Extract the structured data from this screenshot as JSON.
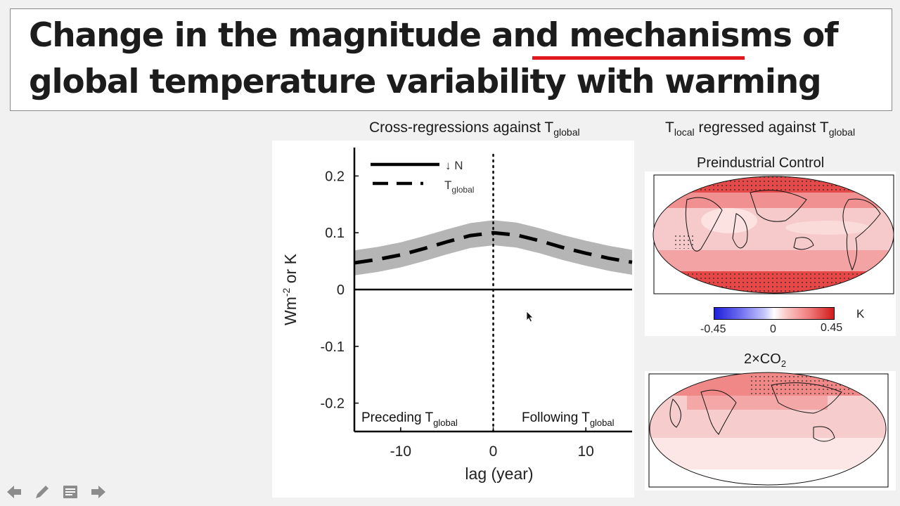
{
  "slide": {
    "title_line1_a": "Change in the magnitude and ",
    "title_line1_highlight": "mechanisms",
    "title_line1_b": " of",
    "title_line2": "global temperature variability with warming",
    "colors": {
      "highlight": "#e0191e",
      "text": "#1c1c1c"
    }
  },
  "left_heading": {
    "main": "Cross-regressions against T",
    "sub": "global"
  },
  "right_heading": {
    "a": "T",
    "a_sub": "local",
    "b": " regressed against T",
    "b_sub": "global"
  },
  "chart_data": {
    "type": "line",
    "x": [
      -15,
      -12.5,
      -10,
      -7.5,
      -5,
      -2.5,
      0,
      2.5,
      5,
      7.5,
      10,
      12.5,
      15
    ],
    "series": [
      {
        "name": "↓ N",
        "style": "solid",
        "values": [
          0,
          0,
          0,
          0,
          0,
          0,
          0,
          0,
          0,
          0,
          0,
          0,
          0
        ]
      },
      {
        "name": "T",
        "name_sub": "global",
        "style": "dashed",
        "values": [
          0.047,
          0.053,
          0.061,
          0.072,
          0.084,
          0.095,
          0.1,
          0.096,
          0.086,
          0.074,
          0.064,
          0.055,
          0.048
        ],
        "band_halfwidth": 0.022
      }
    ],
    "xlabel": "lag (year)",
    "ylabel_main": "Wm",
    "ylabel_sup": "-2",
    "ylabel_tail": " or K",
    "xlim": [
      -15,
      15
    ],
    "ylim": [
      -0.25,
      0.25
    ],
    "xticks": [
      -10,
      0,
      10
    ],
    "xtick_labels": [
      "-10",
      "0",
      "10"
    ],
    "yticks": [
      0.2,
      0.1,
      0,
      -0.1,
      -0.2
    ],
    "ytick_labels": [
      "0.2",
      "0.1",
      "0",
      "-0.1",
      "-0.2"
    ],
    "vline_x": 0,
    "annotations": [
      {
        "text": "Preceding T",
        "sub": "global",
        "placement": "bottom-left"
      },
      {
        "text": "Following T",
        "sub": "global",
        "placement": "bottom-right"
      }
    ],
    "legend_position": "top-left"
  },
  "maps": {
    "top_title": "Preindustrial Control",
    "bottom_title_a": "2×CO",
    "bottom_title_sub": "2",
    "colorbar_unit": "K",
    "colorbar_ticks": [
      "-0.45",
      "0",
      "0.45"
    ],
    "colors": {
      "neg": "#1f1fd9",
      "pos": "#d11a1a",
      "mid": "#ffffff"
    }
  }
}
